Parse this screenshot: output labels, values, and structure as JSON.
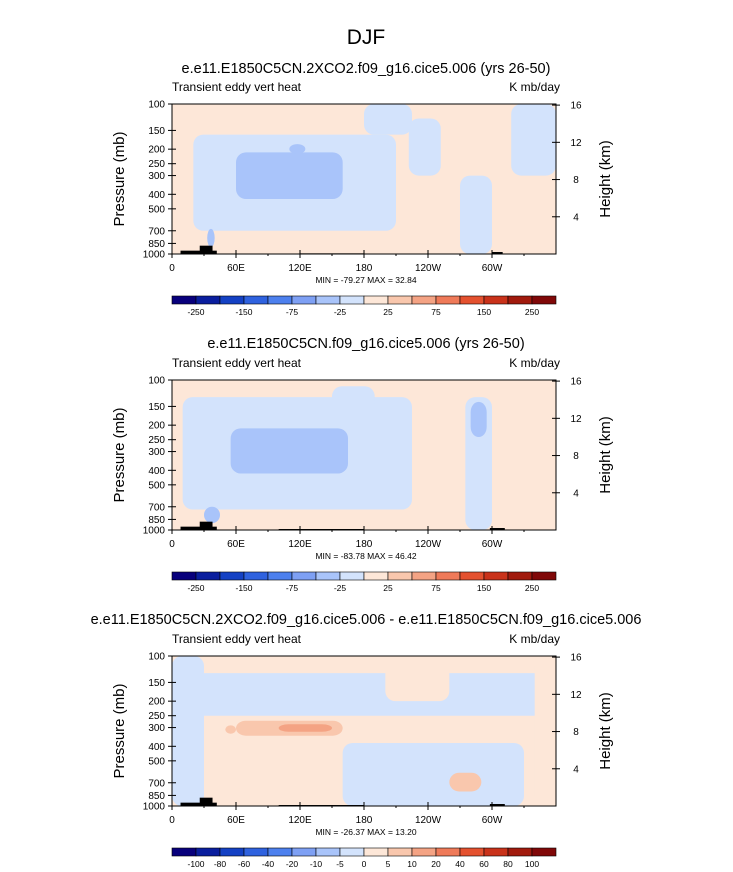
{
  "figure_title": "DJF",
  "colors": {
    "ocean_base": "#fde7d8",
    "topography": "#000000",
    "frame": "#000000"
  },
  "chart_data": [
    {
      "type": "heatmap",
      "title": "e.e11.E1850C5CN.2XCO2.f09_g16.cice5.006 (yrs 26-50)",
      "left_label": "Transient eddy vert heat",
      "right_label": "K mb/day",
      "ylabel": "Pressure (mb)",
      "ylabel_right": "Height (km)",
      "x_ticks": [
        "0",
        "60E",
        "120E",
        "180",
        "120W",
        "60W"
      ],
      "x_tick_lons": [
        0,
        60,
        120,
        180,
        240,
        300
      ],
      "xlim": [
        0,
        360
      ],
      "p_ticks": [
        "100",
        "150",
        "200",
        "250",
        "300",
        "400",
        "500",
        "700",
        "850",
        "1000"
      ],
      "p_tick_values": [
        100,
        150,
        200,
        250,
        300,
        400,
        500,
        700,
        850,
        1000
      ],
      "ylim_mb": [
        1000,
        100
      ],
      "h_ticks": [
        "4",
        "8",
        "12",
        "16"
      ],
      "h_tick_values_km": [
        4,
        8,
        12,
        16
      ],
      "stats": "MIN = -79.27  MAX = 32.84",
      "min": -79.27,
      "max": 32.84,
      "colorbar": {
        "labels": [
          "-250",
          "-150",
          "-75",
          "-25",
          "25",
          "75",
          "150",
          "250"
        ],
        "label_at_boundary": [
          1,
          3,
          5,
          7,
          9,
          11,
          13,
          15
        ],
        "colors": [
          "#08007c",
          "#0a1e9e",
          "#1441c4",
          "#2f62df",
          "#4d80ee",
          "#7ea0f4",
          "#a9c4fa",
          "#d3e3fc",
          "#fde7d8",
          "#f9c7ad",
          "#f4a384",
          "#ef7a59",
          "#e4512f",
          "#c9321a",
          "#a11a0d",
          "#800808"
        ]
      },
      "regions": [
        {
          "lon": [
            0,
            360
          ],
          "p": [
            100,
            1000
          ],
          "bin": 8
        },
        {
          "lon": [
            20,
            210
          ],
          "p": [
            160,
            700
          ],
          "bin": 7
        },
        {
          "lon": [
            60,
            160
          ],
          "p": [
            210,
            430
          ],
          "bin": 6
        },
        {
          "lon": [
            110,
            125
          ],
          "p": [
            185,
            215
          ],
          "bin": 6
        },
        {
          "lon": [
            33,
            40
          ],
          "p": [
            680,
            900
          ],
          "bin": 6
        },
        {
          "lon": [
            222,
            252
          ],
          "p": [
            125,
            300
          ],
          "bin": 7
        },
        {
          "lon": [
            270,
            300
          ],
          "p": [
            300,
            1000
          ],
          "bin": 7
        },
        {
          "lon": [
            318,
            360
          ],
          "p": [
            100,
            300
          ],
          "bin": 7
        },
        {
          "lon": [
            180,
            225
          ],
          "p": [
            100,
            160
          ],
          "bin": 7
        }
      ],
      "topography": [
        {
          "lon": [
            8,
            42
          ],
          "p": [
            950,
            1000
          ]
        },
        {
          "lon": [
            26,
            38
          ],
          "p": [
            880,
            1000
          ]
        },
        {
          "lon": [
            300,
            310
          ],
          "p": [
            970,
            1000
          ]
        },
        {
          "lon": [
            120,
            180
          ],
          "p": [
            990,
            1000
          ]
        }
      ]
    },
    {
      "type": "heatmap",
      "title": "e.e11.E1850C5CN.f09_g16.cice5.006 (yrs 26-50)",
      "left_label": "Transient eddy vert heat",
      "right_label": "K mb/day",
      "ylabel": "Pressure (mb)",
      "ylabel_right": "Height (km)",
      "x_ticks": [
        "0",
        "60E",
        "120E",
        "180",
        "120W",
        "60W"
      ],
      "x_tick_lons": [
        0,
        60,
        120,
        180,
        240,
        300
      ],
      "xlim": [
        0,
        360
      ],
      "p_ticks": [
        "100",
        "150",
        "200",
        "250",
        "300",
        "400",
        "500",
        "700",
        "850",
        "1000"
      ],
      "p_tick_values": [
        100,
        150,
        200,
        250,
        300,
        400,
        500,
        700,
        850,
        1000
      ],
      "ylim_mb": [
        1000,
        100
      ],
      "h_ticks": [
        "4",
        "8",
        "12",
        "16"
      ],
      "h_tick_values_km": [
        4,
        8,
        12,
        16
      ],
      "stats": "MIN = -83.78  MAX = 46.42",
      "min": -83.78,
      "max": 46.42,
      "colorbar": {
        "labels": [
          "-250",
          "-150",
          "-75",
          "-25",
          "25",
          "75",
          "150",
          "250"
        ],
        "label_at_boundary": [
          1,
          3,
          5,
          7,
          9,
          11,
          13,
          15
        ],
        "colors": [
          "#08007c",
          "#0a1e9e",
          "#1441c4",
          "#2f62df",
          "#4d80ee",
          "#7ea0f4",
          "#a9c4fa",
          "#d3e3fc",
          "#fde7d8",
          "#f9c7ad",
          "#f4a384",
          "#ef7a59",
          "#e4512f",
          "#c9321a",
          "#a11a0d",
          "#800808"
        ]
      },
      "regions": [
        {
          "lon": [
            0,
            360
          ],
          "p": [
            100,
            1000
          ],
          "bin": 8
        },
        {
          "lon": [
            10,
            225
          ],
          "p": [
            130,
            730
          ],
          "bin": 7
        },
        {
          "lon": [
            55,
            165
          ],
          "p": [
            210,
            420
          ],
          "bin": 6
        },
        {
          "lon": [
            30,
            45
          ],
          "p": [
            700,
            900
          ],
          "bin": 6
        },
        {
          "lon": [
            275,
            300
          ],
          "p": [
            130,
            1000
          ],
          "bin": 7
        },
        {
          "lon": [
            150,
            190
          ],
          "p": [
            110,
            160
          ],
          "bin": 7
        },
        {
          "lon": [
            280,
            295
          ],
          "p": [
            140,
            240
          ],
          "bin": 6
        }
      ],
      "topography": [
        {
          "lon": [
            8,
            42
          ],
          "p": [
            950,
            1000
          ]
        },
        {
          "lon": [
            26,
            38
          ],
          "p": [
            880,
            1000
          ]
        },
        {
          "lon": [
            298,
            312
          ],
          "p": [
            970,
            1000
          ]
        },
        {
          "lon": [
            100,
            180
          ],
          "p": [
            985,
            1000
          ]
        }
      ]
    },
    {
      "type": "heatmap",
      "title": "e.e11.E1850C5CN.2XCO2.f09_g16.cice5.006 - e.e11.E1850C5CN.f09_g16.cice5.006",
      "left_label": "Transient eddy vert heat",
      "right_label": "K mb/day",
      "ylabel": "Pressure (mb)",
      "ylabel_right": "Height (km)",
      "x_ticks": [
        "0",
        "60E",
        "120E",
        "180",
        "120W",
        "60W"
      ],
      "x_tick_lons": [
        0,
        60,
        120,
        180,
        240,
        300
      ],
      "xlim": [
        0,
        360
      ],
      "p_ticks": [
        "100",
        "150",
        "200",
        "250",
        "300",
        "400",
        "500",
        "700",
        "850",
        "1000"
      ],
      "p_tick_values": [
        100,
        150,
        200,
        250,
        300,
        400,
        500,
        700,
        850,
        1000
      ],
      "ylim_mb": [
        1000,
        100
      ],
      "h_ticks": [
        "4",
        "8",
        "12",
        "16"
      ],
      "h_tick_values_km": [
        4,
        8,
        12,
        16
      ],
      "stats": "MIN = -26.37  MAX = 13.20",
      "min": -26.37,
      "max": 13.2,
      "colorbar": {
        "labels": [
          "-100",
          "-80",
          "-60",
          "-40",
          "-20",
          "-10",
          "-5",
          "0",
          "5",
          "10",
          "20",
          "40",
          "60",
          "80",
          "100"
        ],
        "label_at_boundary": [
          1,
          2,
          3,
          4,
          5,
          6,
          7,
          8,
          9,
          10,
          11,
          12,
          13,
          14,
          15
        ],
        "colors": [
          "#08007c",
          "#0a1e9e",
          "#1441c4",
          "#2f62df",
          "#4d80ee",
          "#7ea0f4",
          "#a9c4fa",
          "#d3e3fc",
          "#fde7d8",
          "#f9c7ad",
          "#f4a384",
          "#ef7a59",
          "#e4512f",
          "#c9321a",
          "#a11a0d",
          "#800808"
        ]
      },
      "regions": [
        {
          "lon": [
            0,
            360
          ],
          "p": [
            100,
            1000
          ],
          "bin": 8
        },
        {
          "lon": [
            0,
            360
          ],
          "p": [
            130,
            250
          ],
          "bin": 7
        },
        {
          "lon": [
            0,
            30
          ],
          "p": [
            100,
            1000
          ],
          "bin": 7
        },
        {
          "lon": [
            160,
            330
          ],
          "p": [
            380,
            1000
          ],
          "bin": 7
        },
        {
          "lon": [
            60,
            160
          ],
          "p": [
            270,
            340
          ],
          "bin": 9
        },
        {
          "lon": [
            100,
            150
          ],
          "p": [
            285,
            320
          ],
          "bin": 10
        },
        {
          "lon": [
            50,
            60
          ],
          "p": [
            290,
            330
          ],
          "bin": 9
        },
        {
          "lon": [
            340,
            360
          ],
          "p": [
            100,
            1000
          ],
          "bin": 8
        },
        {
          "lon": [
            200,
            260
          ],
          "p": [
            100,
            200
          ],
          "bin": 8
        },
        {
          "lon": [
            60,
            90
          ],
          "p": [
            180,
            230
          ],
          "bin": 7
        },
        {
          "lon": [
            260,
            290
          ],
          "p": [
            600,
            800
          ],
          "bin": 9
        }
      ],
      "topography": [
        {
          "lon": [
            8,
            42
          ],
          "p": [
            950,
            1000
          ]
        },
        {
          "lon": [
            26,
            38
          ],
          "p": [
            880,
            1000
          ]
        },
        {
          "lon": [
            298,
            312
          ],
          "p": [
            970,
            1000
          ]
        },
        {
          "lon": [
            100,
            180
          ],
          "p": [
            985,
            1000
          ]
        }
      ]
    }
  ]
}
